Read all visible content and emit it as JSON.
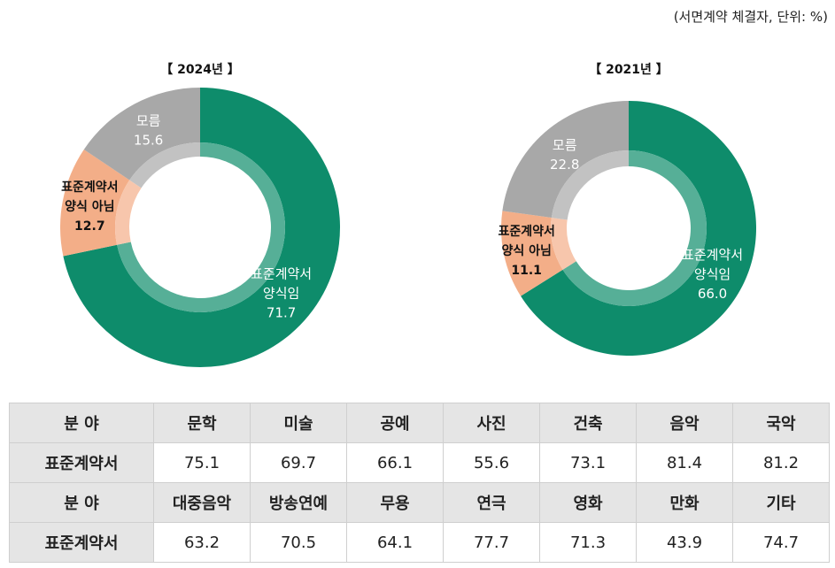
{
  "unit_note": "(서면계약 체결자, 단위: %)",
  "chart_data": [
    {
      "type": "pie",
      "title": "【 2024년 】",
      "slices": [
        {
          "label": "표준계약서\n양식임",
          "value": 71.7,
          "color": "#0e8c6b"
        },
        {
          "label": "표준계약서\n양식 아님",
          "value": 12.7,
          "color": "#f3ae88"
        },
        {
          "label": "모름",
          "value": 15.6,
          "color": "#a8a8a8"
        }
      ]
    },
    {
      "type": "pie",
      "title": "【 2021년 】",
      "slices": [
        {
          "label": "표준계약서\n양식임",
          "value": 66.0,
          "color": "#0e8c6b"
        },
        {
          "label": "표준계약서\n양식 아님",
          "value": 11.1,
          "color": "#f3ae88"
        },
        {
          "label": "모름",
          "value": 22.8,
          "color": "#a8a8a8"
        }
      ]
    }
  ],
  "table": {
    "rows": [
      {
        "kind": "head",
        "cells": [
          "분  야",
          "문학",
          "미술",
          "공예",
          "사진",
          "건축",
          "음악",
          "국악"
        ]
      },
      {
        "kind": "vals",
        "cells": [
          "표준계약서",
          "75.1",
          "69.7",
          "66.1",
          "55.6",
          "73.1",
          "81.4",
          "81.2"
        ]
      },
      {
        "kind": "head",
        "cells": [
          "분  야",
          "대중음악",
          "방송연예",
          "무용",
          "연극",
          "영화",
          "만화",
          "기타"
        ]
      },
      {
        "kind": "vals",
        "cells": [
          "표준계약서",
          "63.2",
          "70.5",
          "64.1",
          "77.7",
          "71.3",
          "43.9",
          "74.7"
        ]
      }
    ]
  }
}
